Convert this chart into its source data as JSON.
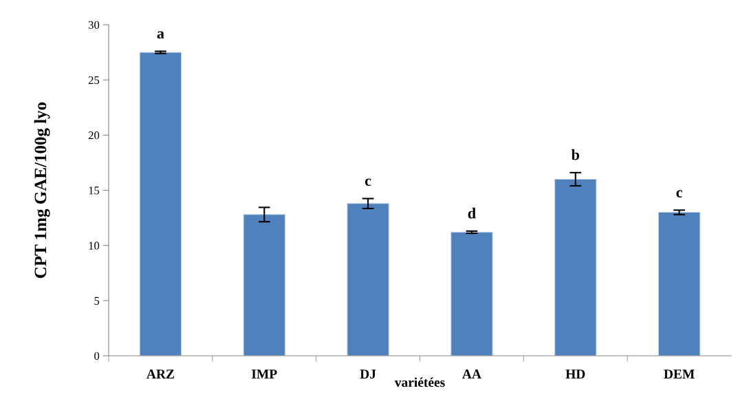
{
  "chart_data": {
    "type": "bar",
    "categories": [
      "ARZ",
      "IMP",
      "DJ",
      "AA",
      "HD",
      "DEM"
    ],
    "values": [
      27.5,
      12.8,
      13.8,
      11.2,
      16.0,
      13.0
    ],
    "errors": [
      0.1,
      0.65,
      0.45,
      0.1,
      0.6,
      0.2
    ],
    "color": "#4f81bd",
    "xlabel": "variétées",
    "ylabel": "CPT 1mg GAE/100g lyo",
    "ylim": [
      0,
      30
    ],
    "yticks": [
      0,
      5,
      10,
      15,
      20,
      25,
      30
    ],
    "grid": false,
    "value_labels": [
      "a",
      null,
      "c",
      "d",
      "b",
      "c"
    ]
  }
}
